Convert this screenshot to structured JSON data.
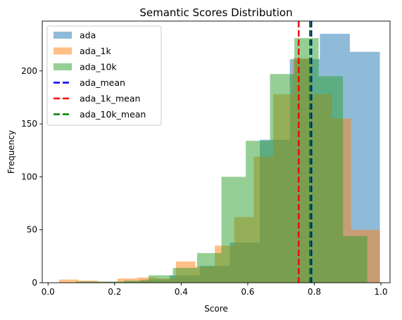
{
  "chart_data": {
    "type": "histogram",
    "title": "Semantic Scores Distribution",
    "xlabel": "Score",
    "ylabel": "Frequency",
    "xlim": [
      -0.0175,
      1.0275
    ],
    "ylim": [
      0,
      247
    ],
    "x_ticks": [
      0.0,
      0.2,
      0.4,
      0.6,
      0.8,
      1.0
    ],
    "x_tick_labels": [
      "0.0",
      "0.2",
      "0.4",
      "0.6",
      "0.8",
      "1.0"
    ],
    "y_ticks": [
      0,
      50,
      100,
      150,
      200
    ],
    "y_tick_labels": [
      "0",
      "50",
      "100",
      "150",
      "200"
    ],
    "grid": false,
    "legend_position": "top-left",
    "series": [
      {
        "name": "ada",
        "color": "#1f77b4",
        "alpha": 0.5,
        "bin_edges": [
          0.095,
          0.1852,
          0.2754,
          0.3656,
          0.4558,
          0.546,
          0.6362,
          0.7264,
          0.8166,
          0.9068,
          0.997
        ],
        "counts": [
          1,
          1,
          3,
          7,
          16,
          38,
          135,
          211,
          235,
          218
        ]
      },
      {
        "name": "ada_1k",
        "color": "#ff7f0e",
        "alpha": 0.5,
        "bin_edges": [
          0.033,
          0.0915,
          0.15,
          0.2085,
          0.267,
          0.3255,
          0.384,
          0.4425,
          0.501,
          0.5595,
          0.618,
          0.6765,
          0.735,
          0.7935,
          0.852,
          0.9105,
          0.969,
          0.997
        ],
        "counts": [
          3,
          2,
          1,
          4,
          5,
          4,
          20,
          15,
          35,
          62,
          119,
          178,
          212,
          178,
          155,
          50,
          50
        ]
      },
      {
        "name": "ada_10k",
        "color": "#2ca02c",
        "alpha": 0.5,
        "bin_edges": [
          0.083,
          0.156,
          0.229,
          0.302,
          0.375,
          0.448,
          0.521,
          0.594,
          0.667,
          0.74,
          0.813,
          0.886,
          0.959
        ],
        "counts": [
          1,
          1,
          2,
          7,
          14,
          28,
          100,
          134,
          197,
          231,
          195,
          44
        ]
      }
    ],
    "vlines": [
      {
        "name": "ada_mean",
        "x": 0.791,
        "color": "#0000ff",
        "style": "dashed"
      },
      {
        "name": "ada_1k_mean",
        "x": 0.753,
        "color": "#ff0000",
        "style": "dashed"
      },
      {
        "name": "ada_10k_mean",
        "x": 0.787,
        "color": "#008000",
        "style": "dashed"
      }
    ]
  }
}
